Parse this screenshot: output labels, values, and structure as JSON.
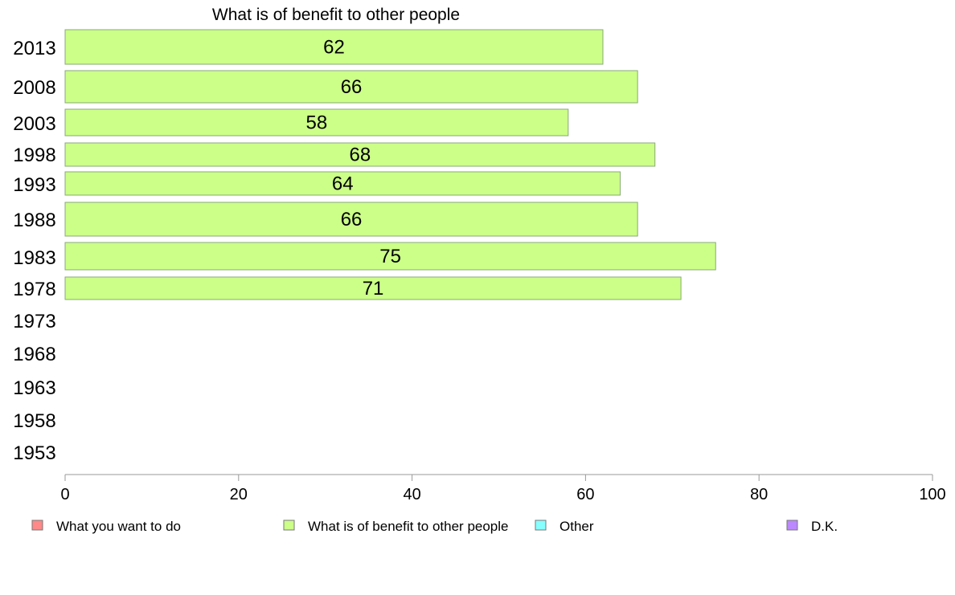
{
  "chart_data": {
    "type": "bar",
    "orientation": "horizontal",
    "title": "What is of benefit to other people",
    "categories": [
      "2013",
      "2008",
      "2003",
      "1998",
      "1993",
      "1988",
      "1983",
      "1978",
      "1973",
      "1968",
      "1963",
      "1958",
      "1953"
    ],
    "series": [
      {
        "name": "What is of benefit to other people",
        "color": "#ccff88",
        "values": [
          62,
          66,
          58,
          68,
          64,
          66,
          75,
          71,
          null,
          null,
          null,
          null,
          null
        ]
      }
    ],
    "xlim": [
      0,
      100
    ],
    "x_ticks": [
      0,
      20,
      40,
      60,
      80,
      100
    ],
    "grid": false,
    "legend": {
      "position": "bottom",
      "entries": [
        {
          "label": "What you want to do",
          "color": "#ff8888"
        },
        {
          "label": "What is of benefit to other people",
          "color": "#ccff88"
        },
        {
          "label": "Other",
          "color": "#88ffff"
        },
        {
          "label": "D.K.",
          "color": "#bb88ff"
        }
      ]
    }
  }
}
